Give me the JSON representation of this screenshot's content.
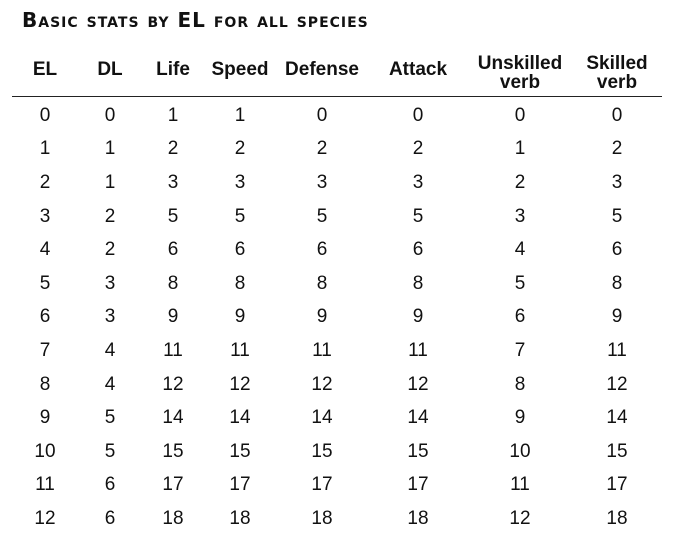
{
  "title": "Basic stats by EL for all species",
  "table": {
    "columns": [
      "EL",
      "DL",
      "Life",
      "Speed",
      "Defense",
      "Attack",
      "Unskilled verb",
      "Skilled verb"
    ],
    "rows": [
      [
        "0",
        "0",
        "1",
        "1",
        "0",
        "0",
        "0",
        "0"
      ],
      [
        "1",
        "1",
        "2",
        "2",
        "2",
        "2",
        "1",
        "2"
      ],
      [
        "2",
        "1",
        "3",
        "3",
        "3",
        "3",
        "2",
        "3"
      ],
      [
        "3",
        "2",
        "5",
        "5",
        "5",
        "5",
        "3",
        "5"
      ],
      [
        "4",
        "2",
        "6",
        "6",
        "6",
        "6",
        "4",
        "6"
      ],
      [
        "5",
        "3",
        "8",
        "8",
        "8",
        "8",
        "5",
        "8"
      ],
      [
        "6",
        "3",
        "9",
        "9",
        "9",
        "9",
        "6",
        "9"
      ],
      [
        "7",
        "4",
        "11",
        "11",
        "11",
        "11",
        "7",
        "11"
      ],
      [
        "8",
        "4",
        "12",
        "12",
        "12",
        "12",
        "8",
        "12"
      ],
      [
        "9",
        "5",
        "14",
        "14",
        "14",
        "14",
        "9",
        "14"
      ],
      [
        "10",
        "5",
        "15",
        "15",
        "15",
        "15",
        "10",
        "15"
      ],
      [
        "11",
        "6",
        "17",
        "17",
        "17",
        "17",
        "11",
        "17"
      ],
      [
        "12",
        "6",
        "18",
        "18",
        "18",
        "18",
        "12",
        "18"
      ]
    ]
  }
}
